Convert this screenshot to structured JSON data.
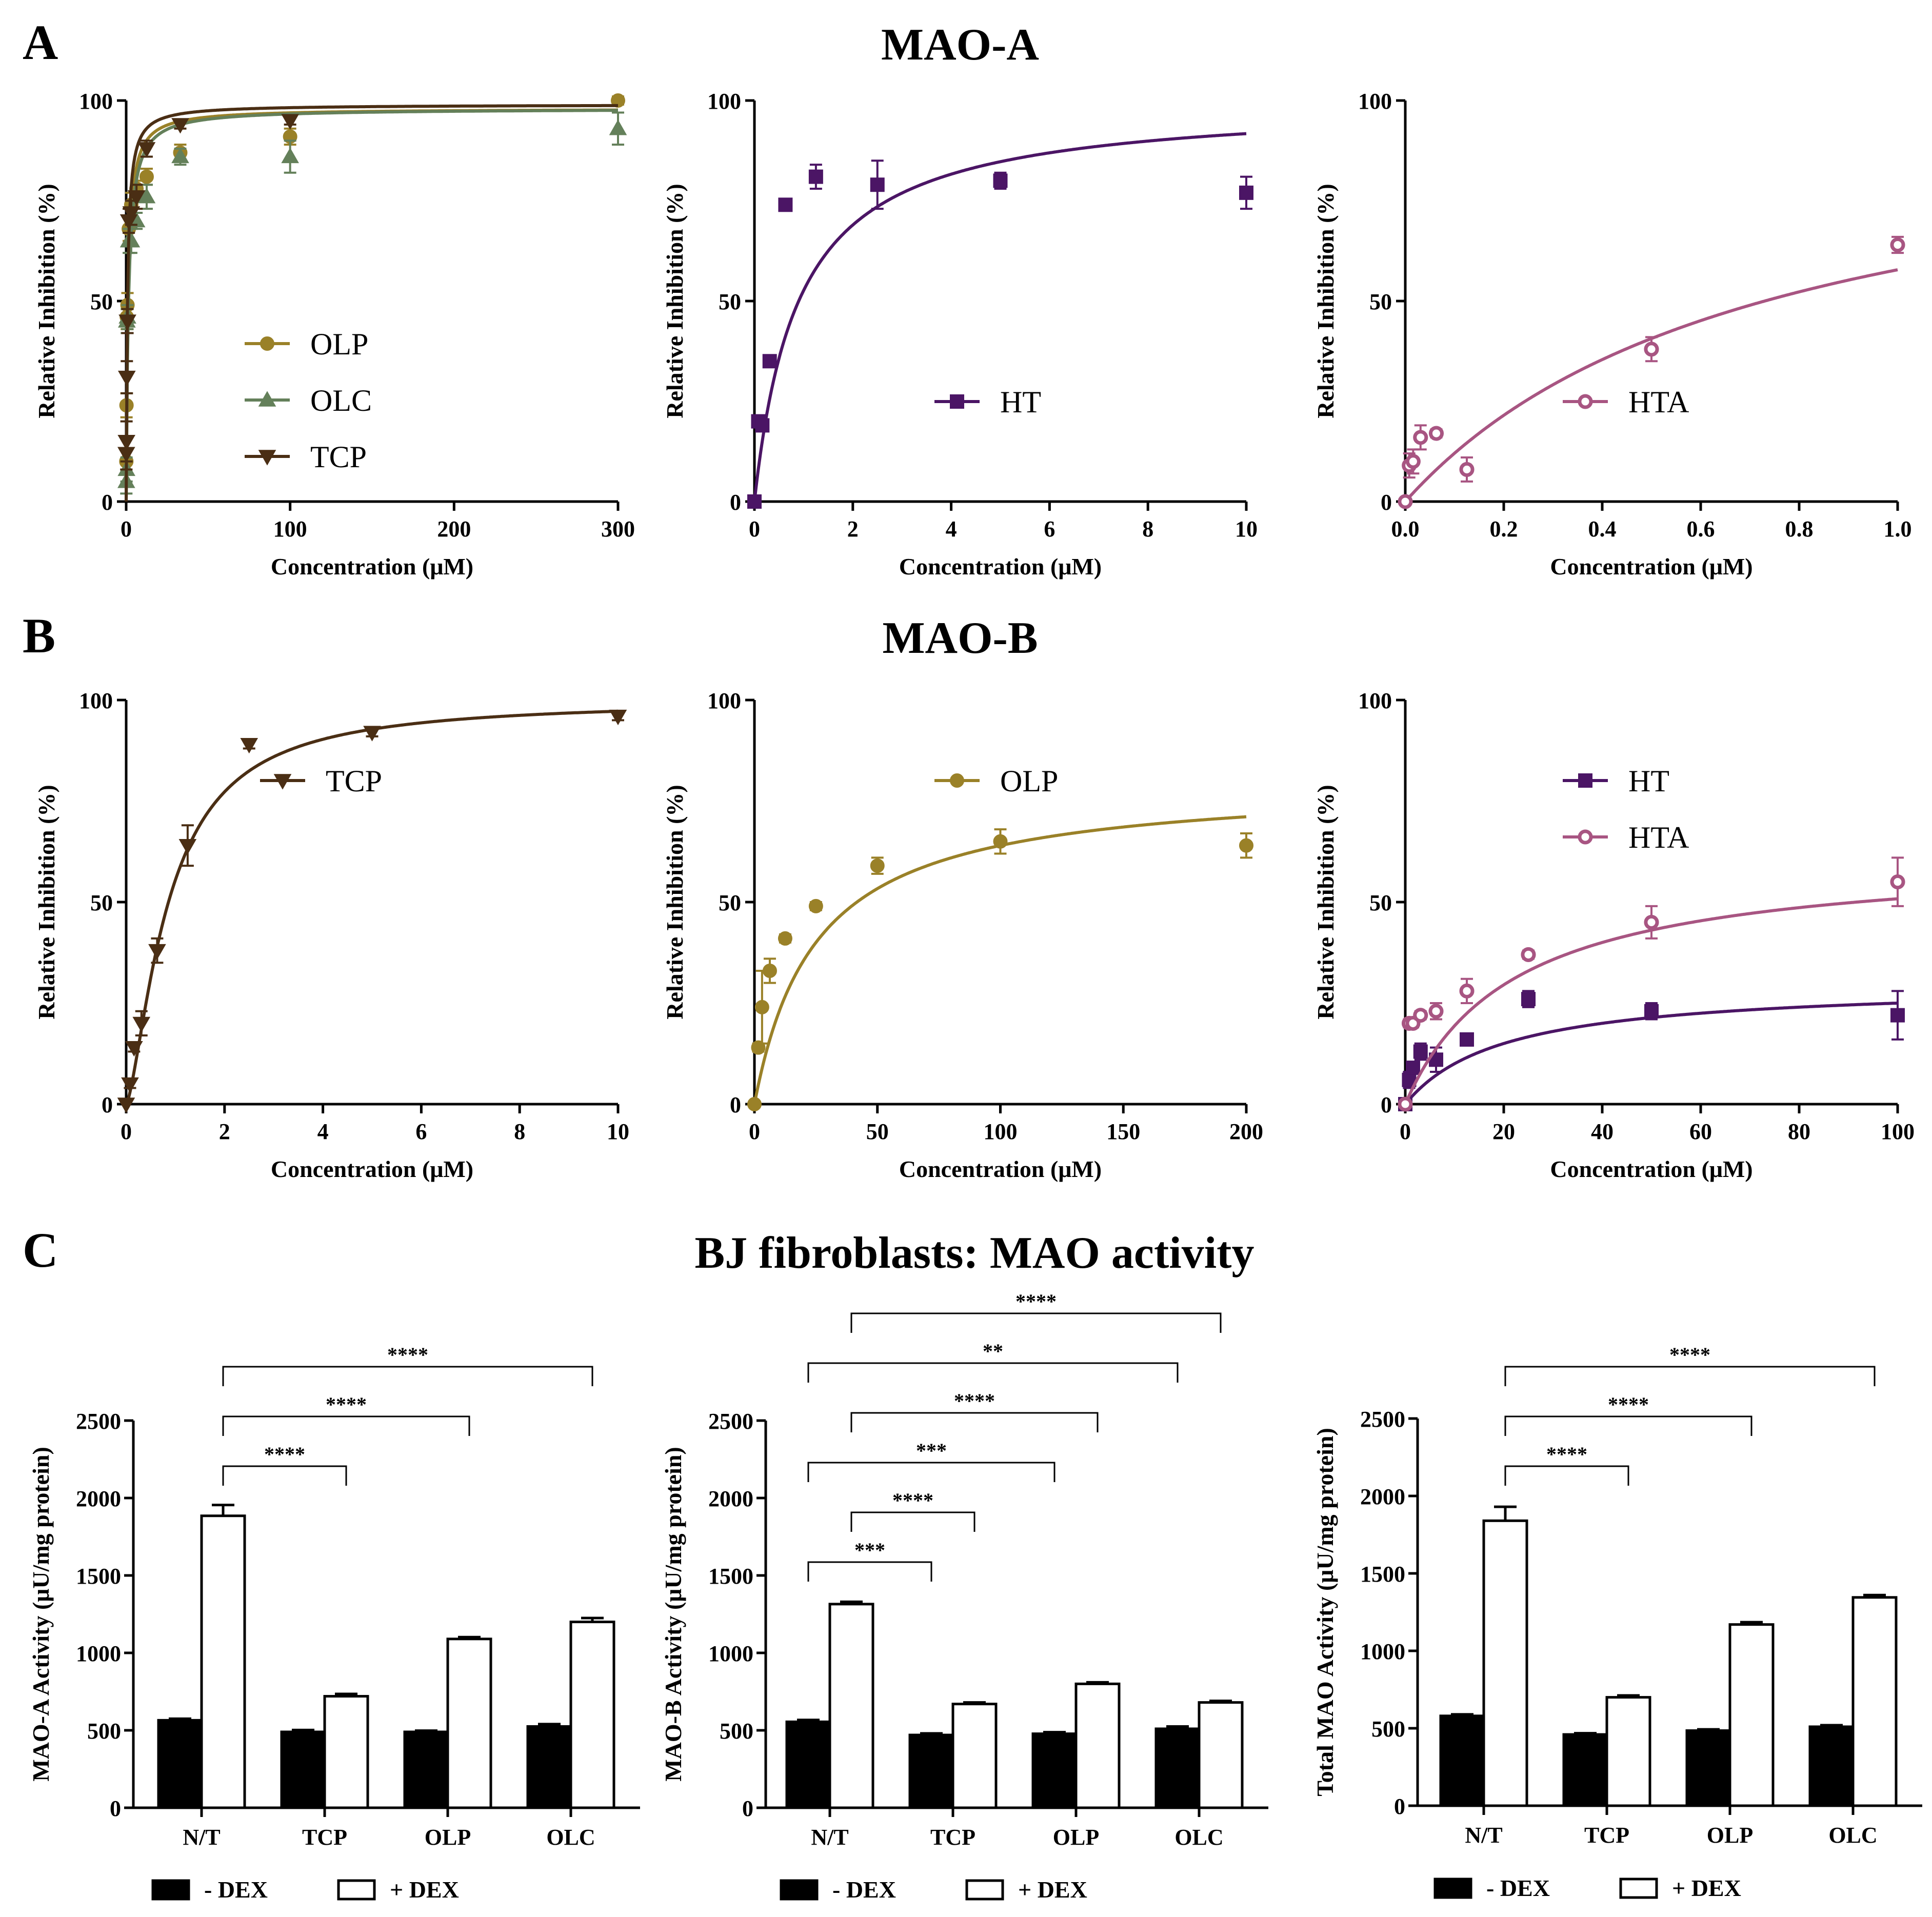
{
  "sections": {
    "A": {
      "letter": "A",
      "title": "MAO-A"
    },
    "B": {
      "letter": "B",
      "title": "MAO-B"
    },
    "C": {
      "letter": "C",
      "title": "BJ fibroblasts: MAO activity"
    }
  },
  "colors": {
    "OLP": "#9a8128",
    "OLC": "#64805a",
    "TCP": "#4a2e14",
    "HT": "#4b1565",
    "HTA": "#a85582",
    "bar_minus": "#000000",
    "bar_plus": "#ffffff"
  },
  "chart_data": [
    {
      "id": "A1",
      "type": "scatter",
      "fit": "hyperbolic",
      "xlabel": "Concentration (μM)",
      "ylabel": "Relative Inhibition (%)",
      "xlim": [
        0,
        300
      ],
      "ylim": [
        0,
        100
      ],
      "xticks": [
        0,
        100,
        200,
        300
      ],
      "xticklabels": [
        "0",
        "100",
        "200",
        "300"
      ],
      "yticks": [
        0,
        50,
        100
      ],
      "yticklabels": [
        "0",
        "50",
        "100"
      ],
      "legend": {
        "placement": "center-left"
      },
      "series": [
        {
          "name": "OLP",
          "marker": "circle",
          "filled": true,
          "fit": {
            "top": 98,
            "ec50": 1.1
          },
          "x": [
            0.1,
            0.2,
            0.4,
            0.8,
            1.6,
            3.1,
            6.3,
            12.5,
            33,
            100,
            300
          ],
          "y": [
            10,
            24,
            46,
            49,
            68,
            74,
            78,
            81,
            87,
            91,
            100
          ],
          "err": [
            3,
            3,
            3,
            3,
            3,
            3,
            2,
            2,
            2,
            2,
            1
          ]
        },
        {
          "name": "OLC",
          "marker": "triangle-up",
          "filled": true,
          "fit": {
            "top": 98,
            "ec50": 1.4
          },
          "x": [
            0.1,
            0.2,
            0.4,
            0.8,
            1.6,
            3.1,
            6.3,
            12.5,
            33,
            100,
            300
          ],
          "y": [
            5,
            8,
            45,
            46,
            65,
            65,
            70,
            76,
            86,
            86,
            93
          ],
          "err": [
            3,
            3,
            3,
            3,
            3,
            3,
            2,
            3,
            2,
            4,
            4
          ]
        },
        {
          "name": "TCP",
          "marker": "triangle-down",
          "filled": true,
          "fit": {
            "top": 99,
            "ec50": 0.8
          },
          "x": [
            0.1,
            0.2,
            0.4,
            0.8,
            1.6,
            3.1,
            6.3,
            12.5,
            33,
            100
          ],
          "y": [
            12,
            15,
            31,
            45,
            70,
            72,
            76,
            88,
            94,
            95
          ],
          "err": [
            4,
            5,
            4,
            3,
            3,
            3,
            3,
            2,
            1,
            1
          ]
        }
      ]
    },
    {
      "id": "A2",
      "type": "scatter",
      "fit": "hyperbolic",
      "xlabel": "Concentration (μM)",
      "ylabel": "Relative Inhibition (%)",
      "xlim": [
        0,
        10
      ],
      "ylim": [
        0,
        100
      ],
      "xticks": [
        0,
        2,
        4,
        6,
        8,
        10
      ],
      "xticklabels": [
        "0",
        "2",
        "4",
        "6",
        "8",
        "10"
      ],
      "yticks": [
        0,
        50,
        100
      ],
      "yticklabels": [
        "0",
        "50",
        "100"
      ],
      "legend": {
        "placement": "center"
      },
      "series": [
        {
          "name": "HT",
          "marker": "square",
          "filled": true,
          "fit": {
            "top": 100,
            "ec50": 0.9
          },
          "x": [
            0,
            0.078,
            0.16,
            0.31,
            0.63,
            1.25,
            2.5,
            5,
            10
          ],
          "y": [
            0,
            20,
            19,
            35,
            74,
            81,
            79,
            80,
            77
          ],
          "err": [
            0,
            1,
            1,
            1,
            1,
            3,
            6,
            2,
            4
          ]
        }
      ]
    },
    {
      "id": "A3",
      "type": "scatter",
      "fit": "hyperbolic",
      "xlabel": "Concentration (μM)",
      "ylabel": "Relative Inhibition (%)",
      "xlim": [
        0,
        1.0
      ],
      "ylim": [
        0,
        100
      ],
      "xticks": [
        0,
        0.2,
        0.4,
        0.6,
        0.8,
        1.0
      ],
      "xticklabels": [
        "0.0",
        "0.2",
        "0.4",
        "0.6",
        "0.8",
        "1.0"
      ],
      "yticks": [
        0,
        50,
        100
      ],
      "yticklabels": [
        "0",
        "50",
        "100"
      ],
      "legend": {
        "placement": "center-right"
      },
      "series": [
        {
          "name": "HTA",
          "marker": "circle",
          "filled": false,
          "fit": {
            "top": 100,
            "ec50": 0.73
          },
          "x": [
            0,
            0.008,
            0.016,
            0.031,
            0.063,
            0.125,
            0.5,
            1.0
          ],
          "y": [
            0,
            9,
            10,
            16,
            17,
            8,
            38,
            64
          ],
          "err": [
            0,
            3,
            3,
            3,
            1,
            3,
            3,
            2
          ]
        }
      ]
    },
    {
      "id": "B1",
      "type": "scatter",
      "fit": "sigmoidal",
      "xlabel": "Concentration (μM)",
      "ylabel": "Relative Inhibition (%)",
      "xlim": [
        0,
        10
      ],
      "ylim": [
        0,
        100
      ],
      "xticks": [
        0,
        2,
        4,
        6,
        8,
        10
      ],
      "xticklabels": [
        "0",
        "2",
        "4",
        "6",
        "8",
        "10"
      ],
      "yticks": [
        0,
        50,
        100
      ],
      "yticklabels": [
        "0",
        "50",
        "100"
      ],
      "legend": {
        "placement": "top-center"
      },
      "series": [
        {
          "name": "TCP",
          "marker": "triangle-down",
          "filled": true,
          "fit": {
            "top": 100,
            "ec50": 0.86,
            "hill": 1.45
          },
          "x": [
            0,
            0.078,
            0.16,
            0.31,
            0.63,
            1.25,
            2.5,
            5,
            10
          ],
          "y": [
            0,
            5,
            14,
            20,
            38,
            64,
            89,
            92,
            96
          ],
          "err": [
            0,
            1,
            1,
            3,
            3,
            5,
            1,
            1,
            1
          ]
        }
      ]
    },
    {
      "id": "B2",
      "type": "scatter",
      "fit": "hyperbolic",
      "xlabel": "Concentration (μM)",
      "ylabel": "Relative Inhibition (%)",
      "xlim": [
        0,
        200
      ],
      "ylim": [
        0,
        100
      ],
      "xticks": [
        0,
        50,
        100,
        150,
        200
      ],
      "xticklabels": [
        "0",
        "50",
        "100",
        "150",
        "200"
      ],
      "yticks": [
        0,
        50,
        100
      ],
      "yticklabels": [
        "0",
        "50",
        "100"
      ],
      "legend": {
        "placement": "top-center"
      },
      "series": [
        {
          "name": "OLP",
          "marker": "circle",
          "filled": true,
          "fit": {
            "top": 80,
            "ec50": 25
          },
          "x": [
            0,
            1.56,
            3.1,
            6.25,
            12.5,
            25,
            50,
            100,
            200
          ],
          "y": [
            0,
            14,
            24,
            33,
            41,
            49,
            59,
            65,
            64
          ],
          "err": [
            0,
            1,
            9,
            3,
            1,
            1,
            2,
            3,
            3
          ]
        }
      ]
    },
    {
      "id": "B3",
      "type": "scatter",
      "fit": "hyperbolic",
      "xlabel": "Concentration (μM)",
      "ylabel": "Relative Inhibition (%)",
      "xlim": [
        0,
        100
      ],
      "ylim": [
        0,
        100
      ],
      "xticks": [
        0,
        20,
        40,
        60,
        80,
        100
      ],
      "xticklabels": [
        "0",
        "20",
        "40",
        "60",
        "80",
        "100"
      ],
      "yticks": [
        0,
        50,
        100
      ],
      "yticklabels": [
        "0",
        "50",
        "100"
      ],
      "legend": {
        "placement": "top-center"
      },
      "series": [
        {
          "name": "HT",
          "marker": "square",
          "filled": true,
          "fit": {
            "top": 30,
            "ec50": 20
          },
          "x": [
            0,
            0.78,
            1.56,
            3.1,
            6.25,
            12.5,
            25,
            50,
            100
          ],
          "y": [
            0,
            6,
            9,
            13,
            11,
            16,
            26,
            23,
            22
          ],
          "err": [
            0,
            2,
            1,
            2,
            3,
            1,
            2,
            2,
            6
          ]
        },
        {
          "name": "HTA",
          "marker": "circle",
          "filled": false,
          "fit": {
            "top": 62,
            "ec50": 22
          },
          "x": [
            0,
            0.78,
            1.56,
            3.1,
            6.25,
            12.5,
            25,
            50,
            100
          ],
          "y": [
            0,
            20,
            20,
            22,
            23,
            28,
            37,
            45,
            55
          ],
          "err": [
            0,
            1,
            1,
            1,
            2,
            3,
            1,
            4,
            6
          ]
        }
      ]
    },
    {
      "id": "C1",
      "type": "bar",
      "ylabel": "MAO-A Activity (μU/mg protein)",
      "categories": [
        "N/T",
        "TCP",
        "OLP",
        "OLC"
      ],
      "ylim": [
        0,
        2500
      ],
      "yticks": [
        0,
        500,
        1000,
        1500,
        2000,
        2500
      ],
      "yticklabels": [
        "0",
        "500",
        "1000",
        "1500",
        "2000",
        "2500"
      ],
      "series": [
        {
          "name": "- DEX",
          "values": [
            565,
            490,
            490,
            525
          ],
          "err": [
            10,
            12,
            8,
            15
          ]
        },
        {
          "name": "+ DEX",
          "values": [
            1885,
            720,
            1090,
            1200
          ],
          "err": [
            70,
            15,
            12,
            25
          ]
        }
      ],
      "significance": [
        {
          "from": [
            0,
            1
          ],
          "to": [
            1,
            1
          ],
          "label": "****",
          "level": 1
        },
        {
          "from": [
            0,
            1
          ],
          "to": [
            2,
            1
          ],
          "label": "****",
          "level": 2
        },
        {
          "from": [
            0,
            1
          ],
          "to": [
            3,
            1
          ],
          "label": "****",
          "level": 3
        }
      ]
    },
    {
      "id": "C2",
      "type": "bar",
      "ylabel": "MAO-B Activity (μU/mg protein)",
      "categories": [
        "N/T",
        "TCP",
        "OLP",
        "OLC"
      ],
      "ylim": [
        0,
        2500
      ],
      "yticks": [
        0,
        500,
        1000,
        1500,
        2000,
        2500
      ],
      "yticklabels": [
        "0",
        "500",
        "1000",
        "1500",
        "2000",
        "2500"
      ],
      "series": [
        {
          "name": "- DEX",
          "values": [
            555,
            470,
            478,
            510
          ],
          "err": [
            12,
            10,
            10,
            15
          ]
        },
        {
          "name": "+ DEX",
          "values": [
            1315,
            670,
            800,
            680
          ],
          "err": [
            15,
            10,
            10,
            10
          ]
        }
      ],
      "significance": [
        {
          "from": [
            0,
            0
          ],
          "to": [
            1,
            0
          ],
          "label": "***",
          "level": 1
        },
        {
          "from": [
            0,
            1
          ],
          "to": [
            1,
            1
          ],
          "label": "****",
          "level": 2
        },
        {
          "from": [
            0,
            0
          ],
          "to": [
            2,
            0
          ],
          "label": "***",
          "level": 3
        },
        {
          "from": [
            0,
            1
          ],
          "to": [
            2,
            1
          ],
          "label": "****",
          "level": 4
        },
        {
          "from": [
            0,
            0
          ],
          "to": [
            3,
            0
          ],
          "label": "**",
          "level": 5
        },
        {
          "from": [
            0,
            1
          ],
          "to": [
            3,
            1
          ],
          "label": "****",
          "level": 6
        }
      ]
    },
    {
      "id": "C3",
      "type": "bar",
      "ylabel": "Total MAO Activity (μU/mg protein)",
      "categories": [
        "N/T",
        "TCP",
        "OLP",
        "OLC"
      ],
      "ylim": [
        0,
        2500
      ],
      "yticks": [
        0,
        500,
        1000,
        1500,
        2000,
        2500
      ],
      "yticklabels": [
        "0",
        "500",
        "1000",
        "1500",
        "2000",
        "2500"
      ],
      "series": [
        {
          "name": "- DEX",
          "values": [
            580,
            460,
            485,
            510
          ],
          "err": [
            10,
            8,
            8,
            10
          ]
        },
        {
          "name": "+ DEX",
          "values": [
            1840,
            700,
            1170,
            1345
          ],
          "err": [
            90,
            12,
            15,
            15
          ]
        }
      ],
      "significance": [
        {
          "from": [
            0,
            1
          ],
          "to": [
            1,
            1
          ],
          "label": "****",
          "level": 1
        },
        {
          "from": [
            0,
            1
          ],
          "to": [
            2,
            1
          ],
          "label": "****",
          "level": 2
        },
        {
          "from": [
            0,
            1
          ],
          "to": [
            3,
            1
          ],
          "label": "****",
          "level": 3
        }
      ]
    }
  ]
}
